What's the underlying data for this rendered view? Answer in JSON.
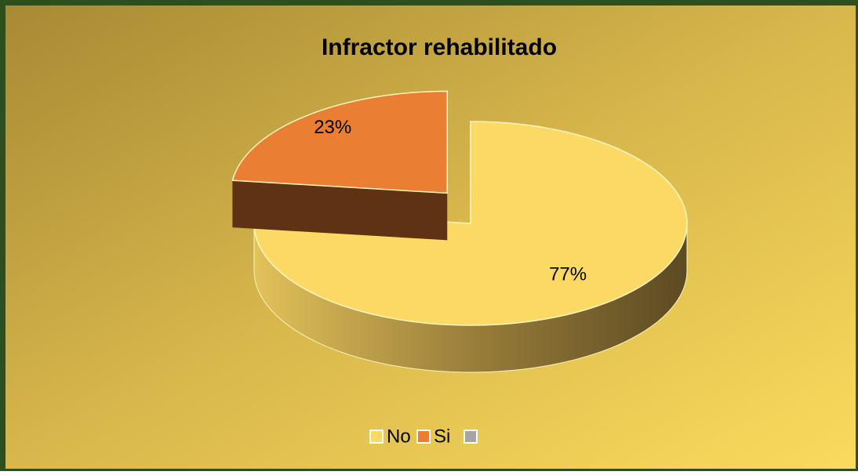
{
  "chart_data": {
    "type": "pie",
    "title": "Infractor rehabilitado",
    "categories": [
      "No",
      "Si",
      null
    ],
    "values": [
      77,
      23,
      0
    ],
    "value_labels": [
      "77%",
      "23%",
      null
    ],
    "colors": [
      "#fcd964",
      "#ea7e33",
      "#a5a5a5"
    ],
    "legend": "bottom"
  }
}
